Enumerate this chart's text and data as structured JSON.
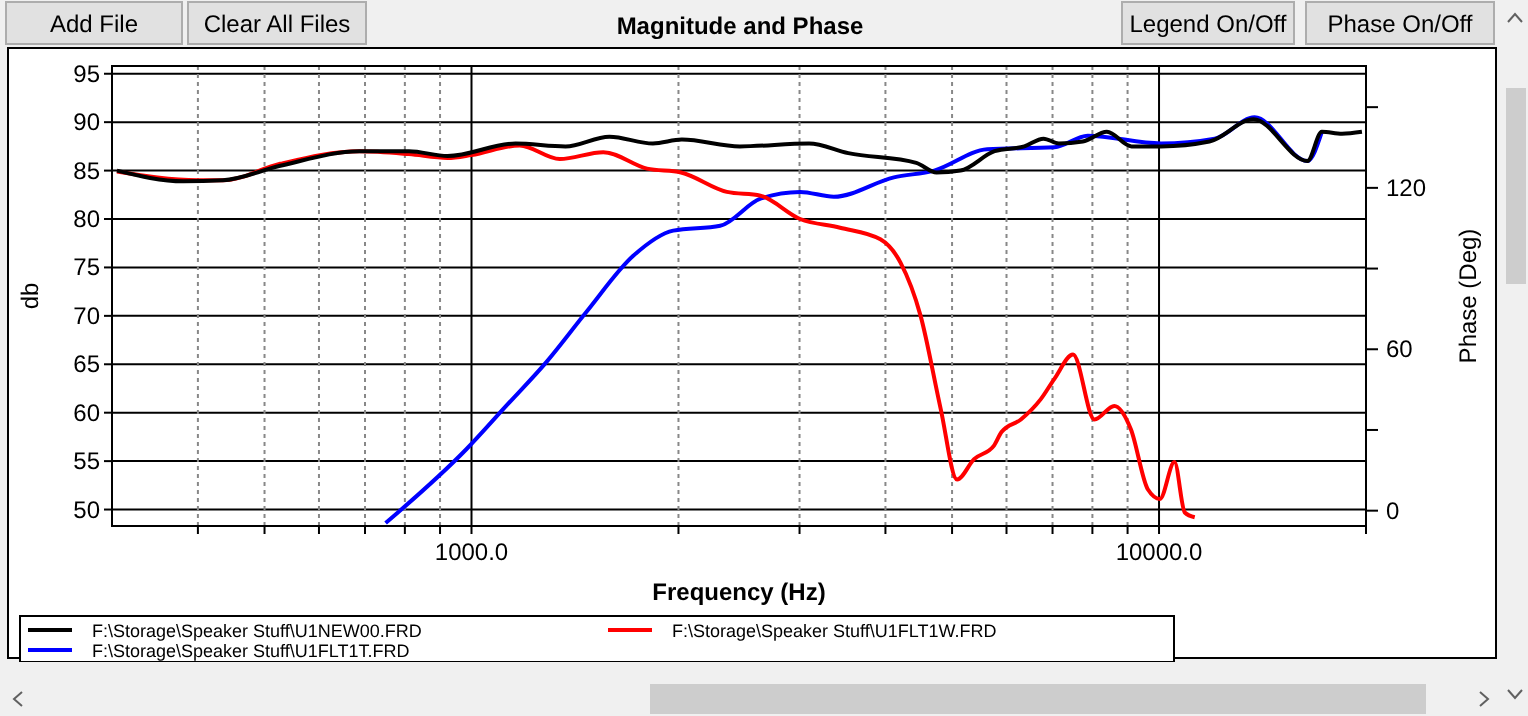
{
  "chart_data": {
    "type": "line",
    "title": "Magnitude and Phase",
    "xlabel": "Frequency (Hz)",
    "ylabel": "db",
    "y2label": "Phase (Deg)",
    "log": "x",
    "grid": true,
    "legend": "bottom",
    "line_style": "solid",
    "marker": "none",
    "annotations": [
      "Add File",
      "Clear All Files",
      "Legend On/Off",
      "Phase On/Off"
    ],
    "xlim": [
      300,
      20000
    ],
    "xticks": [
      {
        "value": 400,
        "label": null
      },
      {
        "value": 500,
        "label": null
      },
      {
        "value": 600,
        "label": null
      },
      {
        "value": 700,
        "label": null
      },
      {
        "value": 800,
        "label": null
      },
      {
        "value": 900,
        "label": null
      },
      {
        "value": 1000,
        "label": "1000.0"
      },
      {
        "value": 2000,
        "label": null
      },
      {
        "value": 3000,
        "label": null
      },
      {
        "value": 4000,
        "label": null
      },
      {
        "value": 5000,
        "label": null
      },
      {
        "value": 6000,
        "label": null
      },
      {
        "value": 7000,
        "label": null
      },
      {
        "value": 8000,
        "label": null
      },
      {
        "value": 9000,
        "label": null
      },
      {
        "value": 10000,
        "label": "10000.0"
      },
      {
        "value": 20000,
        "label": null
      }
    ],
    "ylim": [
      48.3,
      95.8
    ],
    "yticks": [
      50,
      55,
      60,
      65,
      70,
      75,
      80,
      85,
      90,
      95
    ],
    "y2lim": [
      -5.7,
      165.3
    ],
    "y2ticks": [
      0,
      {
        "value": 30,
        "label": null
      },
      60,
      {
        "value": 90,
        "label": null
      },
      120,
      {
        "value": 150,
        "label": null
      }
    ],
    "series": [
      {
        "name": "F:\\Storage\\Speaker Stuff\\U1NEW00.FRD",
        "color": "#000000",
        "x": [
          305,
          381,
          435,
          527,
          687,
          811,
          923,
          1159,
          1370,
          1587,
          1836,
          2023,
          2457,
          3097,
          3532,
          4436,
          4747,
          5142,
          5765,
          6371,
          6792,
          7152,
          7745,
          8398,
          9120,
          10070,
          11840,
          13720,
          16440,
          17250,
          18460,
          19730
        ],
        "values": [
          85.0,
          83.9,
          84.0,
          85.5,
          87.0,
          87.0,
          86.5,
          87.8,
          87.5,
          88.5,
          87.8,
          88.2,
          87.5,
          87.8,
          86.8,
          85.8,
          84.8,
          85.0,
          87.0,
          87.5,
          88.3,
          87.8,
          88.0,
          89.0,
          87.5,
          87.5,
          88.0,
          90.3,
          86.0,
          89.0,
          88.8,
          89.0
        ]
      },
      {
        "name": "F:\\Storage\\Speaker Stuff\\U1FLT1W.FRD",
        "color": "#ff0000",
        "x": [
          305,
          400,
          435,
          527,
          687,
          811,
          923,
          1000,
          1175,
          1344,
          1555,
          1800,
          2017,
          2352,
          2632,
          3006,
          3436,
          3933,
          4207,
          4500,
          4813,
          5084,
          5382,
          5754,
          5900,
          6296,
          6730,
          7044,
          7499,
          8055,
          8610,
          9100,
          9630,
          10030,
          10530,
          10900,
          11270
        ],
        "values": [
          84.9,
          84.0,
          84.0,
          85.7,
          87.0,
          86.7,
          86.3,
          86.6,
          87.6,
          86.2,
          86.9,
          85.2,
          84.8,
          82.8,
          82.4,
          80.0,
          79.1,
          77.9,
          75.5,
          70.0,
          60.4,
          53.1,
          55.2,
          56.6,
          58.0,
          59.3,
          61.4,
          63.5,
          66.0,
          59.3,
          60.7,
          58.3,
          52.1,
          51.1,
          54.9,
          49.7,
          49.2
        ]
      },
      {
        "name": "F:\\Storage\\Speaker Stuff\\U1FLT1T.FRD",
        "color": "#0000ff",
        "x": [
          750,
          982,
          1123,
          1284,
          1469,
          1719,
          1965,
          2300,
          2632,
          3006,
          3365,
          4115,
          4710,
          5625,
          7044,
          7874,
          10070,
          12050,
          13770,
          16440,
          17250
        ],
        "values": [
          48.6,
          56.2,
          60.7,
          65.2,
          70.4,
          76.2,
          78.8,
          79.3,
          82.1,
          82.8,
          82.3,
          84.3,
          85.0,
          87.2,
          87.4,
          88.6,
          87.8,
          88.3,
          90.5,
          86.0,
          89.0
        ]
      }
    ]
  }
}
